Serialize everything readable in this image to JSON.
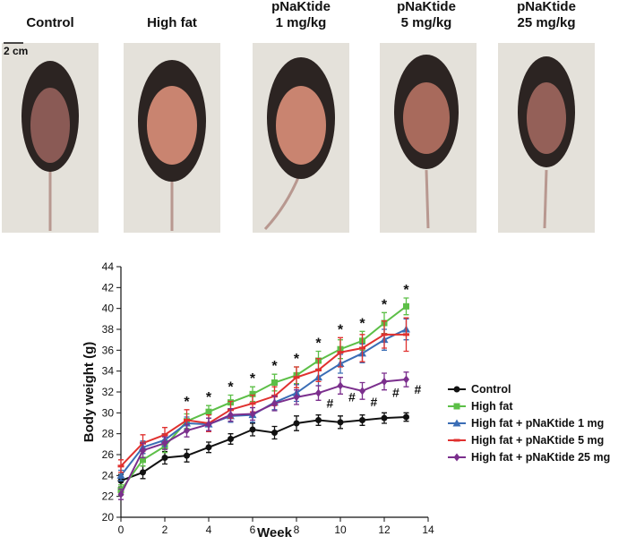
{
  "photos": {
    "labels": [
      [
        "Control"
      ],
      [
        "High fat"
      ],
      [
        "pNaKtide",
        "1 mg/kg"
      ],
      [
        "pNaKtide",
        "5 mg/kg"
      ],
      [
        "pNaKtide",
        "25 mg/kg"
      ]
    ],
    "scale_bar": "2 cm"
  },
  "chart_data": {
    "type": "line",
    "x_label": "Week",
    "y_label": "Body weight (g)",
    "x": [
      0,
      1,
      2,
      3,
      4,
      5,
      6,
      7,
      8,
      9,
      10,
      11,
      12,
      13
    ],
    "xlim": [
      0,
      14
    ],
    "xticks": [
      0,
      2,
      4,
      6,
      8,
      10,
      12,
      14
    ],
    "ylim": [
      20,
      44
    ],
    "yticks": [
      20,
      22,
      24,
      26,
      28,
      30,
      32,
      34,
      36,
      38,
      40,
      42,
      44
    ],
    "series": [
      {
        "name": "Control",
        "color": "#111111",
        "marker": "circle",
        "values": [
          23.5,
          24.3,
          25.7,
          25.9,
          26.7,
          27.5,
          28.4,
          28.1,
          29.0,
          29.3,
          29.1,
          29.3,
          29.5,
          29.6
        ],
        "errors": [
          0.6,
          0.6,
          0.6,
          0.6,
          0.5,
          0.5,
          0.6,
          0.6,
          0.7,
          0.5,
          0.6,
          0.5,
          0.5,
          0.4
        ]
      },
      {
        "name": "High fat",
        "color": "#5cbf47",
        "marker": "square",
        "values": [
          22.6,
          25.5,
          26.8,
          29.2,
          30.1,
          31.0,
          31.8,
          32.9,
          33.6,
          35.0,
          36.1,
          36.9,
          38.6,
          40.2
        ],
        "errors": [
          0.5,
          0.6,
          0.6,
          0.7,
          0.6,
          0.7,
          0.7,
          0.8,
          0.8,
          0.9,
          0.9,
          0.9,
          1.0,
          0.8
        ]
      },
      {
        "name": "High fat + pNaKtide 1 mg",
        "color": "#3a6db5",
        "marker": "triangle",
        "values": [
          24.0,
          26.7,
          27.4,
          29.0,
          28.9,
          29.7,
          29.8,
          31.0,
          31.9,
          33.4,
          34.7,
          35.7,
          37.0,
          38.0
        ],
        "errors": [
          0.5,
          0.6,
          0.6,
          0.6,
          0.6,
          0.6,
          0.7,
          0.7,
          0.8,
          0.8,
          0.9,
          0.9,
          1.0,
          1.0
        ]
      },
      {
        "name": "High fat + pNaKtide 5 mg",
        "color": "#e0312f",
        "marker": "dash",
        "values": [
          24.9,
          27.1,
          27.9,
          29.3,
          29.0,
          30.3,
          30.9,
          31.6,
          33.4,
          34.1,
          35.8,
          36.2,
          37.5,
          37.5
        ],
        "errors": [
          0.6,
          0.8,
          0.7,
          1.0,
          0.8,
          0.8,
          0.8,
          0.9,
          1.0,
          1.1,
          1.4,
          1.3,
          1.3,
          1.6
        ]
      },
      {
        "name": "High fat + pNaKtide 25 mg",
        "color": "#7b2f8d",
        "marker": "diamond",
        "values": [
          22.2,
          26.4,
          27.1,
          28.3,
          28.9,
          29.8,
          29.9,
          30.9,
          31.5,
          31.9,
          32.6,
          32.1,
          33.0,
          33.2
        ],
        "errors": [
          0.5,
          0.7,
          0.6,
          0.6,
          0.6,
          0.6,
          0.6,
          0.7,
          0.7,
          0.7,
          0.8,
          0.8,
          0.8,
          0.7
        ]
      }
    ],
    "star_annotation": {
      "text": "*",
      "weeks": [
        3,
        4,
        5,
        6,
        7,
        8,
        9,
        10,
        11,
        12,
        13
      ]
    },
    "hash_annotation": {
      "text": "#",
      "weeks": [
        9,
        10,
        11,
        12,
        13
      ]
    }
  }
}
